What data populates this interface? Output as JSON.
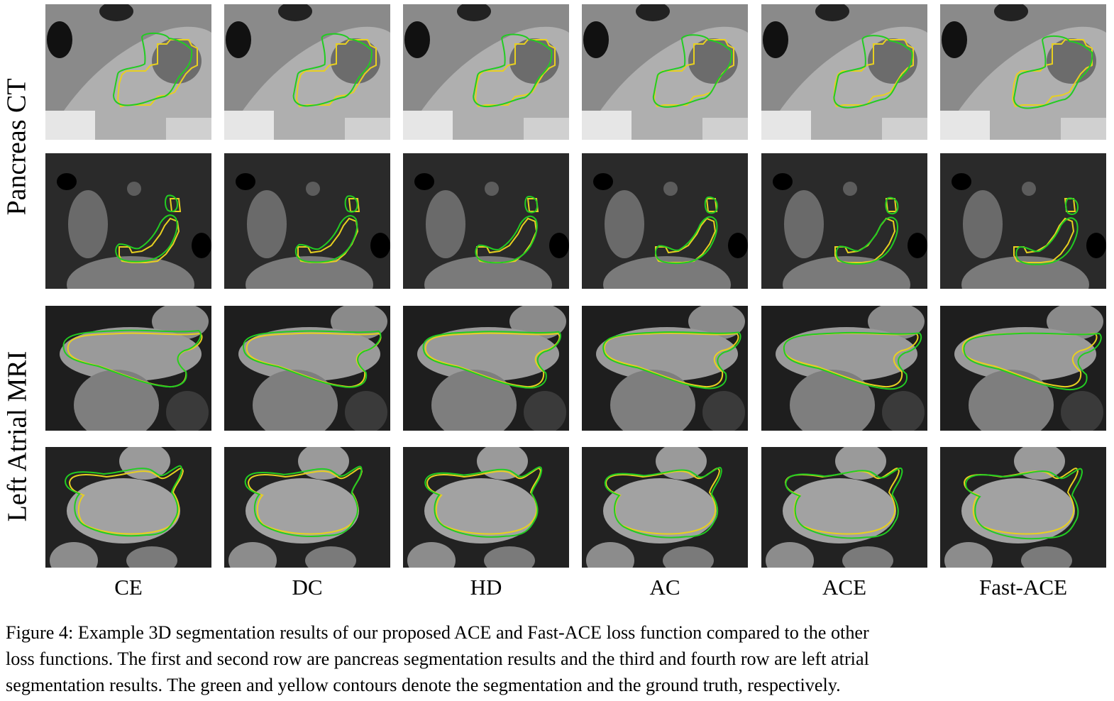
{
  "figure": {
    "row_groups": [
      {
        "label": "Pancreas CT",
        "rows": 2
      },
      {
        "label": "Left Atrial MRI",
        "rows": 2
      }
    ],
    "columns": [
      "CE",
      "DC",
      "HD",
      "AC",
      "ACE",
      "Fast-ACE"
    ],
    "contour_colors": {
      "segmentation": "#22cc22",
      "ground_truth": "#e8d020"
    },
    "modality_tone": {
      "ct_row1": "#8a8a8a",
      "ct_row2": "#2a2a2a",
      "mri": "#555555"
    }
  },
  "caption": {
    "lines": [
      "Figure 4: Example 3D segmentation results of our proposed ACE and Fast-ACE loss function compared to the other",
      "loss functions. The first and second row are pancreas segmentation results and the third and fourth row are left atrial",
      "segmentation results. The green and yellow contours denote the segmentation and the ground truth, respectively."
    ]
  }
}
